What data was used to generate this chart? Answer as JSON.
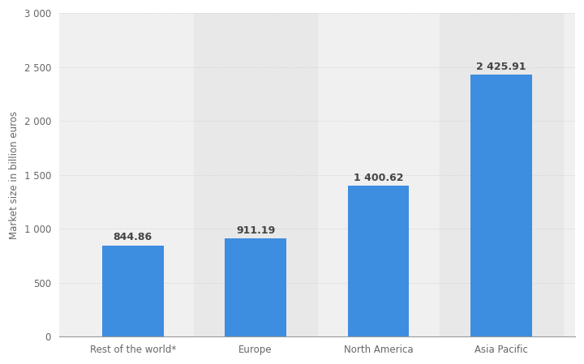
{
  "categories": [
    "Rest of the world*",
    "Europe",
    "North America",
    "Asia Pacific"
  ],
  "values": [
    844.86,
    911.19,
    1400.62,
    2425.91
  ],
  "value_labels": [
    "844.86",
    "911.19",
    "1 400.62",
    "2 425.91"
  ],
  "bar_color": "#3d8de0",
  "background_color": "#ffffff",
  "plot_bg_color": "#f0f0f0",
  "shaded_bg_color": "#e8e8e8",
  "ylabel": "Market size in billion euros",
  "ylim": [
    0,
    3000
  ],
  "yticks": [
    0,
    500,
    1000,
    1500,
    2000,
    2500,
    3000
  ],
  "ytick_labels": [
    "0",
    "500",
    "1 000",
    "1 500",
    "2 000",
    "2 500",
    "3 000"
  ],
  "grid_color": "#cccccc",
  "axis_label_fontsize": 8.5,
  "tick_fontsize": 8.5,
  "value_label_fontsize": 9,
  "bar_width": 0.5,
  "shaded_bars": [
    1,
    3
  ]
}
